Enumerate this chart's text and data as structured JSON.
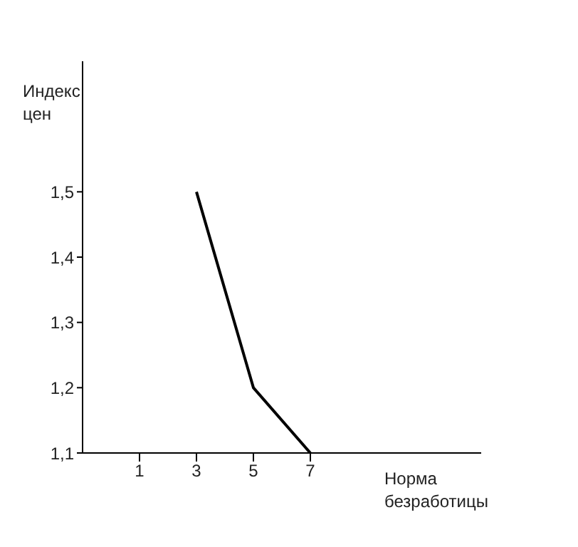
{
  "chart_data": {
    "type": "line",
    "xlabel": "Норма безработицы",
    "ylabel": "Индекс цен",
    "x": [
      3,
      5,
      7
    ],
    "series": [
      {
        "color": "#000000",
        "values": [
          1.5,
          1.2,
          1.1
        ]
      }
    ],
    "xlim": [
      -1,
      13
    ],
    "xticks": [
      1,
      3,
      5,
      7
    ],
    "ylim": [
      1.1,
      1.7
    ],
    "yticks": [
      {
        "value": 1.1,
        "label": "1,1"
      },
      {
        "value": 1.2,
        "label": "1,2"
      },
      {
        "value": 1.3,
        "label": "1,3"
      },
      {
        "value": 1.4,
        "label": "1,4"
      },
      {
        "value": 1.5,
        "label": "1,5"
      }
    ],
    "grid": false,
    "legend": false,
    "marker": "none",
    "line_style": "solid"
  }
}
